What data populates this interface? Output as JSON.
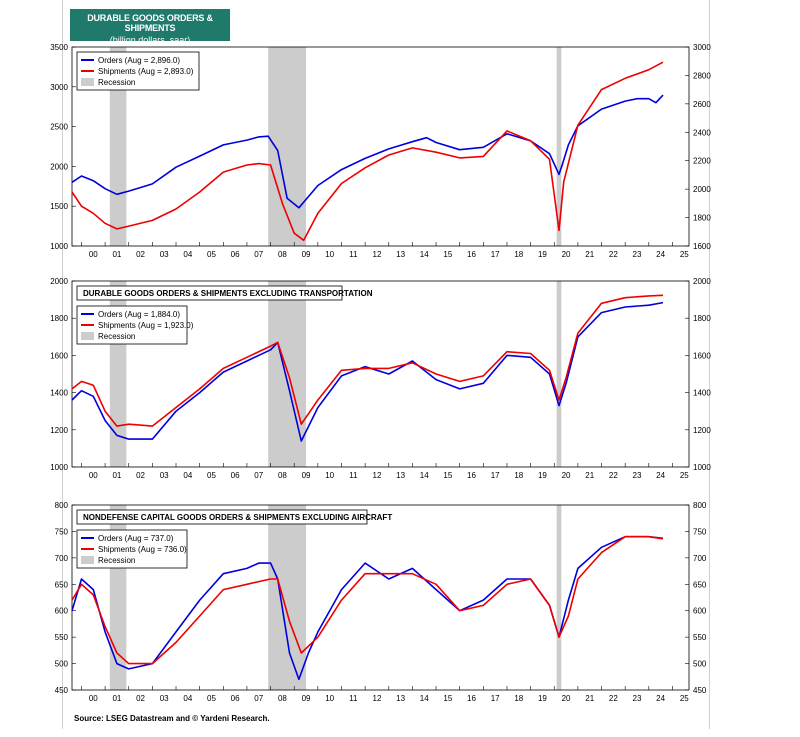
{
  "header": {
    "title": "DURABLE GOODS ORDERS & SHIPMENTS",
    "subtitle": "(billion dollars, saar)",
    "title_bg": "#1f7a6c"
  },
  "source": "Source: LSEG Datastream and © Yardeni Research.",
  "colors": {
    "orders": "#0000dd",
    "shipments": "#ee0000",
    "recession": "#cccccc"
  },
  "chart_data": [
    {
      "type": "line",
      "title": "",
      "ylim": [
        1000,
        3500
      ],
      "yticks": [
        "3500",
        "3000",
        "2500",
        "2000",
        "1500",
        "1000"
      ],
      "y2lim": [
        1600,
        3000
      ],
      "y2ticks": [
        "3000",
        "2800",
        "2600",
        "2400",
        "2200",
        "2000",
        "1800",
        "1600"
      ],
      "xlim": [
        1999.6,
        2025.7
      ],
      "xticks": [
        "00",
        "01",
        "02",
        "03",
        "04",
        "05",
        "06",
        "07",
        "08",
        "09",
        "10",
        "11",
        "12",
        "13",
        "14",
        "15",
        "16",
        "17",
        "18",
        "19",
        "20",
        "21",
        "22",
        "23",
        "24",
        "25"
      ],
      "recessions": [
        [
          2001.2,
          2001.9
        ],
        [
          2007.9,
          2009.5
        ],
        [
          2020.1,
          2020.3
        ]
      ],
      "legend": [
        "Orders (Aug = 2,896.0)",
        "Shipments (Aug = 2,893.0)",
        "Recession"
      ],
      "series": [
        {
          "name": "Orders",
          "axis": "left",
          "x": [
            1999.6,
            2000,
            2000.5,
            2001,
            2001.5,
            2002,
            2003,
            2004,
            2005,
            2006,
            2007,
            2007.5,
            2007.9,
            2008.3,
            2008.7,
            2009.2,
            2009.6,
            2010,
            2011,
            2012,
            2013,
            2014,
            2014.6,
            2015,
            2016,
            2017,
            2018,
            2019,
            2019.8,
            2020.2,
            2020.35,
            2020.6,
            2021,
            2022,
            2023,
            2023.5,
            2024,
            2024.3,
            2024.6
          ],
          "y": [
            1800,
            1880,
            1820,
            1720,
            1650,
            1690,
            1780,
            1990,
            2130,
            2270,
            2330,
            2370,
            2380,
            2200,
            1600,
            1480,
            1620,
            1760,
            1960,
            2100,
            2220,
            2310,
            2360,
            2300,
            2210,
            2240,
            2410,
            2320,
            2160,
            1900,
            2030,
            2270,
            2510,
            2720,
            2820,
            2850,
            2850,
            2800,
            2896
          ]
        },
        {
          "name": "Shipments",
          "axis": "right",
          "x": [
            1999.6,
            2000,
            2000.5,
            2001,
            2001.5,
            2002,
            2003,
            2004,
            2005,
            2006,
            2007,
            2007.5,
            2008,
            2008.5,
            2009,
            2009.4,
            2010,
            2011,
            2012,
            2013,
            2014,
            2015,
            2016,
            2017,
            2018,
            2019,
            2019.8,
            2020.2,
            2020.4,
            2021,
            2022,
            2023,
            2024,
            2024.6
          ],
          "y": [
            1980,
            1880,
            1830,
            1760,
            1720,
            1740,
            1780,
            1860,
            1980,
            2120,
            2170,
            2180,
            2170,
            1900,
            1690,
            1640,
            1830,
            2040,
            2150,
            2240,
            2290,
            2260,
            2220,
            2230,
            2410,
            2340,
            2210,
            1710,
            2050,
            2450,
            2700,
            2780,
            2840,
            2893
          ]
        }
      ]
    },
    {
      "type": "line",
      "title": "DURABLE GOODS ORDERS & SHIPMENTS EXCLUDING TRANSPORTATION",
      "ylim": [
        1000,
        2000
      ],
      "yticks": [
        "2000",
        "1800",
        "1600",
        "1400",
        "1200",
        "1000"
      ],
      "y2lim": [
        1000,
        2000
      ],
      "y2ticks": [
        "2000",
        "1800",
        "1600",
        "1400",
        "1200",
        "1000"
      ],
      "xlim": [
        1999.6,
        2025.7
      ],
      "xticks": [
        "00",
        "01",
        "02",
        "03",
        "04",
        "05",
        "06",
        "07",
        "08",
        "09",
        "10",
        "11",
        "12",
        "13",
        "14",
        "15",
        "16",
        "17",
        "18",
        "19",
        "20",
        "21",
        "22",
        "23",
        "24",
        "25"
      ],
      "recessions": [
        [
          2001.2,
          2001.9
        ],
        [
          2007.9,
          2009.5
        ],
        [
          2020.1,
          2020.3
        ]
      ],
      "legend": [
        "Orders (Aug = 1,884.0)",
        "Shipments (Aug = 1,923.0)",
        "Recession"
      ],
      "series": [
        {
          "name": "Orders",
          "axis": "left",
          "x": [
            1999.6,
            2000,
            2000.5,
            2001,
            2001.5,
            2002,
            2003,
            2004,
            2005,
            2006,
            2007,
            2008,
            2008.3,
            2008.8,
            2009.3,
            2010,
            2011,
            2012,
            2013,
            2014,
            2015,
            2016,
            2017,
            2018,
            2019,
            2019.8,
            2020.2,
            2020.5,
            2021,
            2022,
            2023,
            2024,
            2024.6
          ],
          "y": [
            1360,
            1410,
            1380,
            1250,
            1170,
            1150,
            1150,
            1300,
            1400,
            1510,
            1570,
            1630,
            1670,
            1410,
            1140,
            1320,
            1490,
            1540,
            1500,
            1570,
            1470,
            1420,
            1450,
            1600,
            1590,
            1500,
            1330,
            1450,
            1700,
            1830,
            1860,
            1870,
            1884
          ]
        },
        {
          "name": "Shipments",
          "axis": "right",
          "x": [
            1999.6,
            2000,
            2000.5,
            2001,
            2001.5,
            2002,
            2003,
            2004,
            2005,
            2006,
            2007,
            2008,
            2008.3,
            2008.8,
            2009.3,
            2010,
            2011,
            2012,
            2013,
            2014,
            2015,
            2016,
            2017,
            2018,
            2019,
            2019.8,
            2020.2,
            2020.5,
            2021,
            2022,
            2023,
            2024,
            2024.6
          ],
          "y": [
            1420,
            1460,
            1440,
            1300,
            1220,
            1230,
            1220,
            1320,
            1420,
            1530,
            1590,
            1650,
            1670,
            1480,
            1230,
            1360,
            1520,
            1530,
            1530,
            1560,
            1500,
            1460,
            1490,
            1620,
            1610,
            1520,
            1360,
            1480,
            1720,
            1880,
            1910,
            1920,
            1923
          ]
        }
      ]
    },
    {
      "type": "line",
      "title": "NONDEFENSE CAPITAL GOODS ORDERS & SHIPMENTS EXCLUDING AIRCRAFT",
      "ylim": [
        450,
        800
      ],
      "yticks": [
        "800",
        "750",
        "700",
        "650",
        "600",
        "550",
        "500",
        "450"
      ],
      "y2lim": [
        450,
        800
      ],
      "y2ticks": [
        "800",
        "750",
        "700",
        "650",
        "600",
        "550",
        "500",
        "450"
      ],
      "xlim": [
        1999.6,
        2025.7
      ],
      "xticks": [
        "00",
        "01",
        "02",
        "03",
        "04",
        "05",
        "06",
        "07",
        "08",
        "09",
        "10",
        "11",
        "12",
        "13",
        "14",
        "15",
        "16",
        "17",
        "18",
        "19",
        "20",
        "21",
        "22",
        "23",
        "24",
        "25"
      ],
      "recessions": [
        [
          2001.2,
          2001.9
        ],
        [
          2007.9,
          2009.5
        ],
        [
          2020.1,
          2020.3
        ]
      ],
      "legend": [
        "Orders (Aug = 737.0)",
        "Shipments (Aug = 736.0)",
        "Recession"
      ],
      "series": [
        {
          "name": "Orders",
          "axis": "left",
          "x": [
            1999.6,
            2000,
            2000.5,
            2001,
            2001.5,
            2002,
            2003,
            2004,
            2005,
            2006,
            2007,
            2007.5,
            2008,
            2008.3,
            2008.8,
            2009.2,
            2009.6,
            2010,
            2011,
            2012,
            2013,
            2014,
            2015,
            2016,
            2017,
            2018,
            2019,
            2019.8,
            2020.2,
            2020.6,
            2021,
            2022,
            2023,
            2024,
            2024.6
          ],
          "y": [
            600,
            660,
            640,
            560,
            500,
            490,
            500,
            560,
            620,
            670,
            680,
            690,
            690,
            660,
            520,
            470,
            520,
            560,
            640,
            690,
            660,
            680,
            640,
            600,
            620,
            660,
            660,
            610,
            550,
            620,
            680,
            720,
            740,
            740,
            737
          ]
        },
        {
          "name": "Shipments",
          "axis": "right",
          "x": [
            1999.6,
            2000,
            2000.5,
            2001,
            2001.5,
            2002,
            2003,
            2004,
            2005,
            2006,
            2007,
            2008,
            2008.3,
            2008.8,
            2009.3,
            2010,
            2011,
            2012,
            2013,
            2014,
            2015,
            2016,
            2017,
            2018,
            2019,
            2019.8,
            2020.2,
            2020.6,
            2021,
            2022,
            2023,
            2024,
            2024.6
          ],
          "y": [
            620,
            650,
            630,
            570,
            520,
            500,
            500,
            540,
            590,
            640,
            650,
            660,
            660,
            580,
            520,
            550,
            620,
            670,
            670,
            670,
            650,
            600,
            610,
            650,
            660,
            610,
            550,
            590,
            660,
            710,
            740,
            740,
            736
          ]
        }
      ]
    }
  ]
}
